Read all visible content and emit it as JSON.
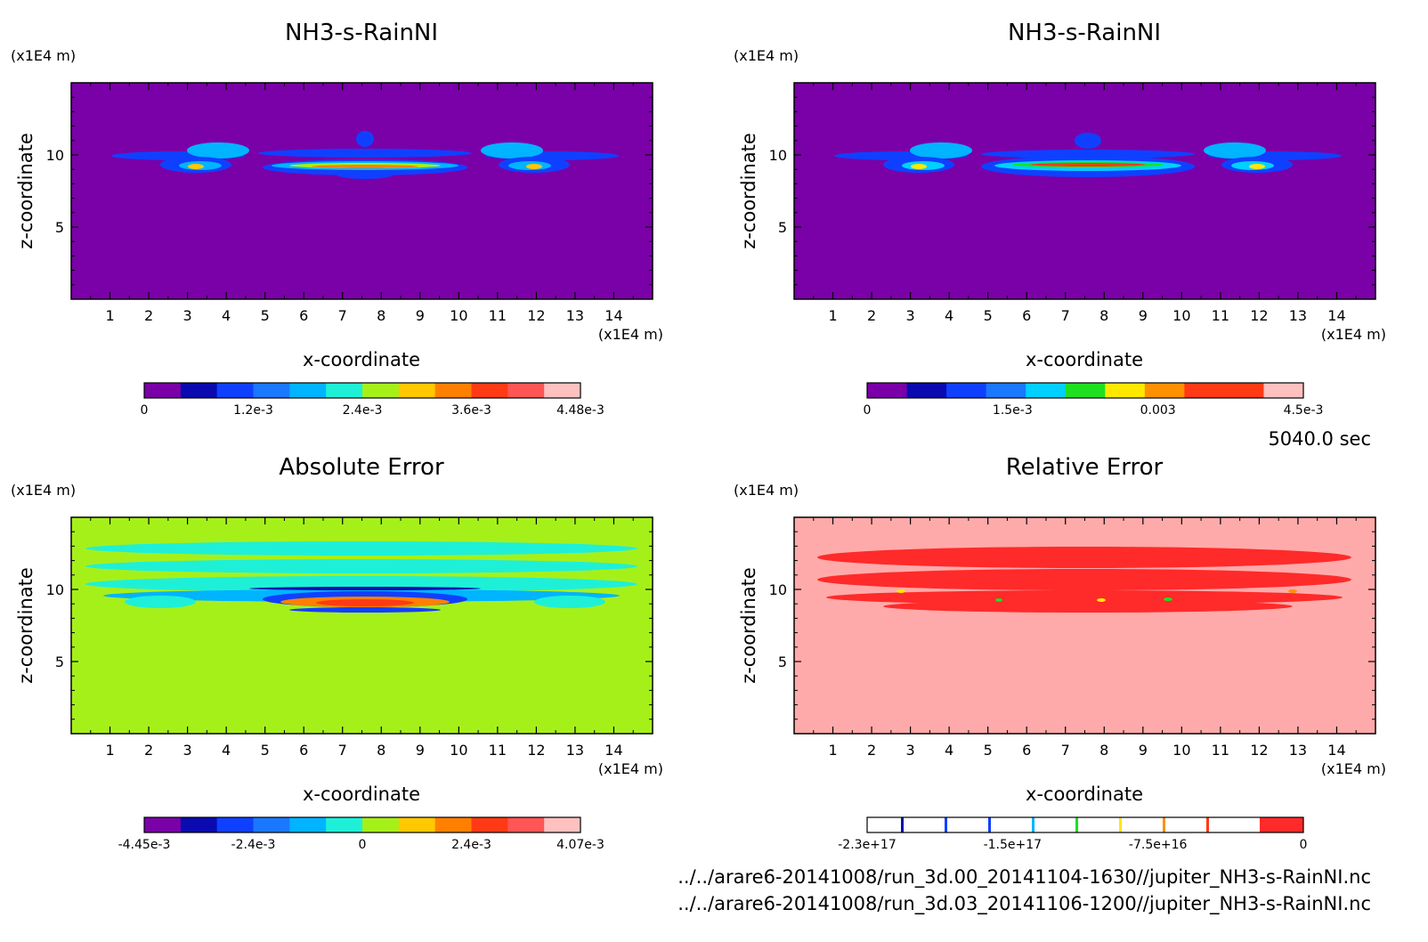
{
  "time_label": "5040.0 sec",
  "footer": {
    "line1": "../../arare6-20141008/run_3d.00_20141104-1630//jupiter_NH3-s-RainNI.nc",
    "line2": "../../arare6-20141008/run_3d.03_20141106-1200//jupiter_NH3-s-RainNI.nc"
  },
  "chart_data": [
    {
      "type": "heatmap",
      "title": "NH3-s-RainNI",
      "xlabel": "x-coordinate",
      "ylabel": "z-coordinate",
      "x_unit": "(x1E4 m)",
      "y_unit": "(x1E4 m)",
      "xlim": [
        0,
        15
      ],
      "ylim": [
        0,
        15
      ],
      "x_ticks": [
        "1",
        "2",
        "3",
        "4",
        "5",
        "6",
        "7",
        "8",
        "9",
        "10",
        "11",
        "12",
        "13",
        "14"
      ],
      "y_ticks": [
        "5",
        "10"
      ],
      "background": "#7a00a8",
      "colorbar": {
        "colors": [
          "#7a00a8",
          "#0a0ab0",
          "#1040ff",
          "#1a78ff",
          "#00b4ff",
          "#1ef0d8",
          "#a6f01a",
          "#ffc800",
          "#ff8000",
          "#ff3a14",
          "#ff5555",
          "#ffc0c0"
        ],
        "labels": [
          "0",
          "1.2e-3",
          "2.4e-3",
          "3.6e-3",
          "4.48e-3"
        ]
      }
    },
    {
      "type": "heatmap",
      "title": "NH3-s-RainNI",
      "xlabel": "x-coordinate",
      "ylabel": "z-coordinate",
      "x_unit": "(x1E4 m)",
      "y_unit": "(x1E4 m)",
      "xlim": [
        0,
        15
      ],
      "ylim": [
        0,
        15
      ],
      "x_ticks": [
        "1",
        "2",
        "3",
        "4",
        "5",
        "6",
        "7",
        "8",
        "9",
        "10",
        "11",
        "12",
        "13",
        "14"
      ],
      "y_ticks": [
        "5",
        "10"
      ],
      "background": "#7a00a8",
      "colorbar": {
        "colors": [
          "#7a00a8",
          "#0a0ab0",
          "#1040ff",
          "#1a78ff",
          "#00d0ff",
          "#1ee020",
          "#ffe800",
          "#ff9000",
          "#ff3a14",
          "#ff3a14",
          "#ffc0c0"
        ],
        "labels": [
          "0",
          "1.5e-3",
          "0.003",
          "4.5e-3"
        ]
      }
    },
    {
      "type": "heatmap",
      "title": "Absolute Error",
      "xlabel": "x-coordinate",
      "ylabel": "z-coordinate",
      "x_unit": "(x1E4 m)",
      "y_unit": "(x1E4 m)",
      "xlim": [
        0,
        15
      ],
      "ylim": [
        0,
        15
      ],
      "x_ticks": [
        "1",
        "2",
        "3",
        "4",
        "5",
        "6",
        "7",
        "8",
        "9",
        "10",
        "11",
        "12",
        "13",
        "14"
      ],
      "y_ticks": [
        "5",
        "10"
      ],
      "background": "#a6f01a",
      "colorbar": {
        "colors": [
          "#7a00a8",
          "#0a0ab0",
          "#1040ff",
          "#1a78ff",
          "#00b4ff",
          "#1ef0d8",
          "#a6f01a",
          "#ffc800",
          "#ff8000",
          "#ff3a14",
          "#ff5555",
          "#ffc0c0"
        ],
        "labels": [
          "-4.45e-3",
          "-2.4e-3",
          "0",
          "2.4e-3",
          "4.07e-3"
        ]
      }
    },
    {
      "type": "heatmap",
      "title": "Relative Error",
      "xlabel": "x-coordinate",
      "ylabel": "z-coordinate",
      "x_unit": "(x1E4 m)",
      "y_unit": "(x1E4 m)",
      "xlim": [
        0,
        15
      ],
      "ylim": [
        0,
        15
      ],
      "x_ticks": [
        "1",
        "2",
        "3",
        "4",
        "5",
        "6",
        "7",
        "8",
        "9",
        "10",
        "11",
        "12",
        "13",
        "14"
      ],
      "y_ticks": [
        "5",
        "10"
      ],
      "background": "#ffaaaa",
      "colorbar": {
        "colors": [
          "#ffffff",
          "#ffffff",
          "#ffffff",
          "#ffffff",
          "#ffffff",
          "#ffffff",
          "#ffffff",
          "#ffffff",
          "#ffffff",
          "#ff2a2a"
        ],
        "labels": [
          "-2.3e+17",
          "-1.5e+17",
          "-7.5e+16",
          "0"
        ]
      }
    }
  ]
}
